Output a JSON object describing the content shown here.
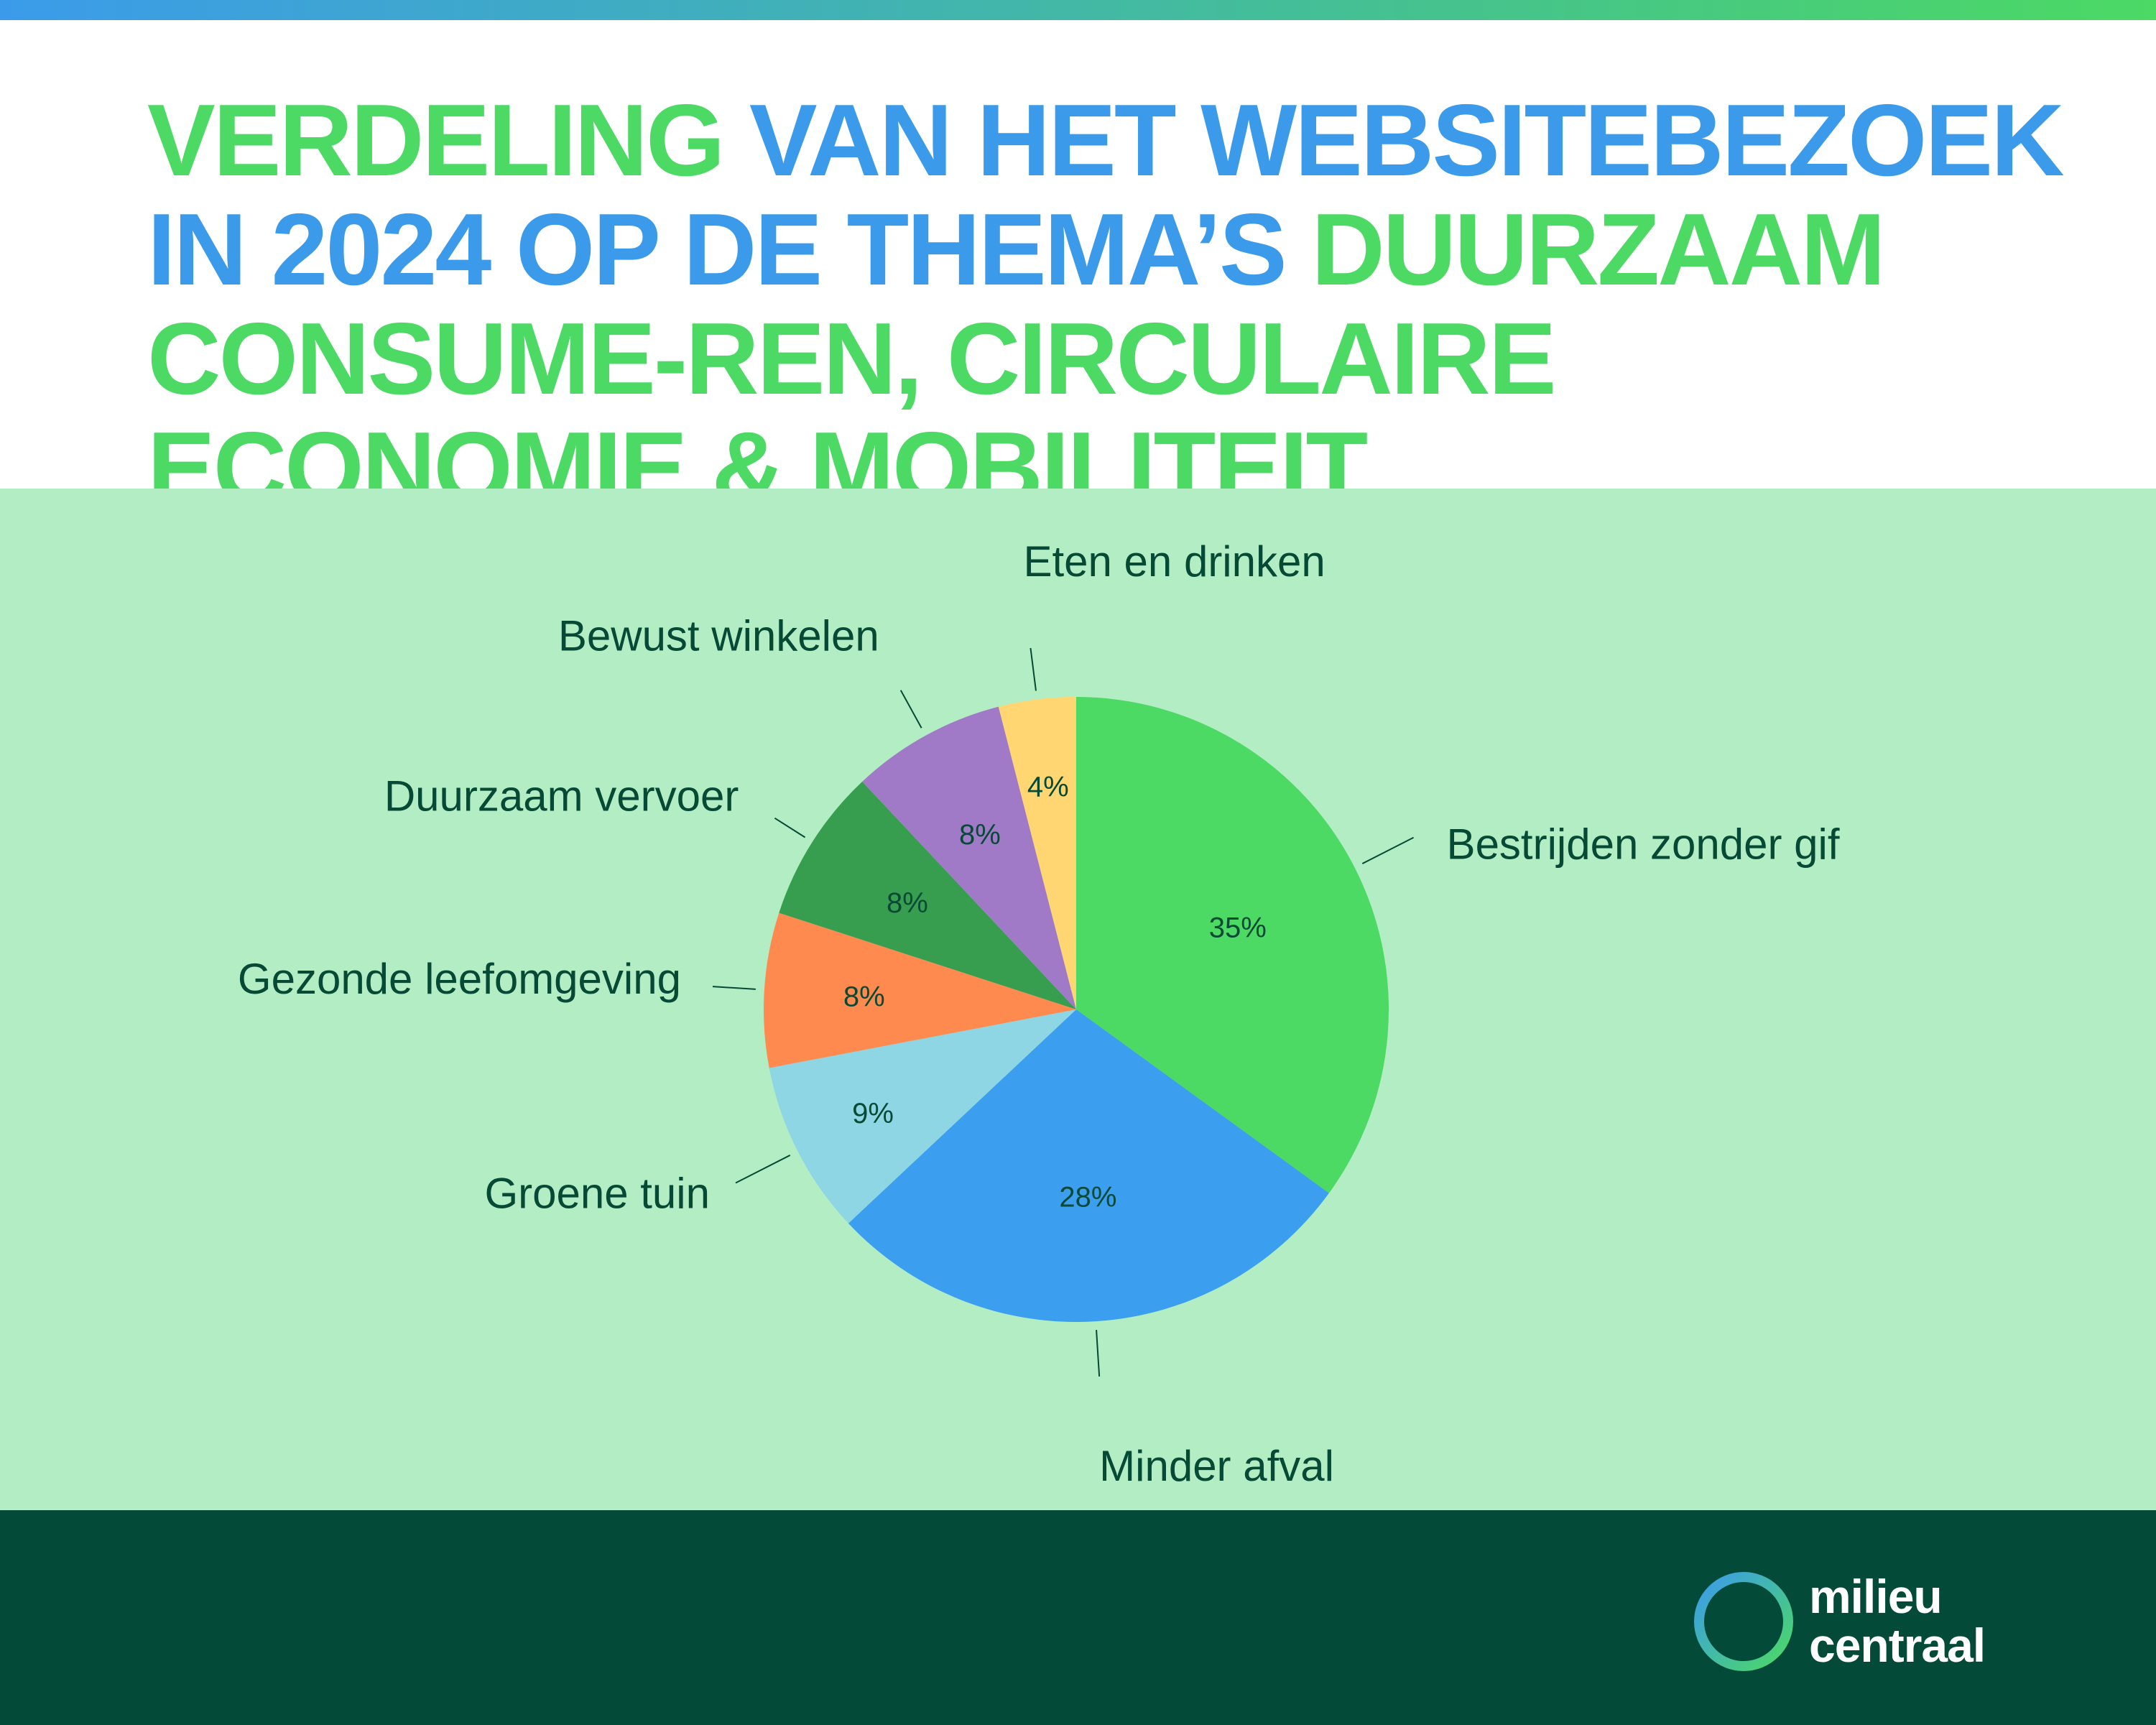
{
  "title": {
    "part1": "VERDELING ",
    "part2": "VAN HET WEBSITEBEZOEK IN 2024 OP DE THEMA’S ",
    "part3": "DUURZAAM CONSUME-REN, CIRCULAIRE ECONOMIE & MOBILITEIT"
  },
  "chart_data": {
    "type": "pie",
    "title": "VERDELING VAN HET WEBSITEBEZOEK IN 2024 OP DE THEMA’S DUURZAAM CONSUME-REN, CIRCULAIRE ECONOMIE & MOBILITEIT",
    "slices": [
      {
        "label": "Bestrijden zonder gif",
        "value": 35,
        "display": "35%",
        "color": "#4cd964"
      },
      {
        "label": "Minder afval",
        "value": 28,
        "display": "28%",
        "color": "#3b9eef"
      },
      {
        "label": "Groene tuin",
        "value": 9,
        "display": "9%",
        "color": "#8ed6e3"
      },
      {
        "label": "Gezonde leefomgeving",
        "value": 8,
        "display": "8%",
        "color": "#ff8a4f"
      },
      {
        "label": "Duurzaam vervoer",
        "value": 8,
        "display": "8%",
        "color": "#389e4f"
      },
      {
        "label": "Bewust winkelen",
        "value": 8,
        "display": "8%",
        "color": "#a07ac7"
      },
      {
        "label": "Eten en drinken",
        "value": 4,
        "display": "4%",
        "color": "#ffd671"
      }
    ]
  },
  "colors": {
    "title_green": "#4cd964",
    "title_blue": "#3b9bea",
    "chart_background": "#b3edc4",
    "footer_background": "#034b38",
    "label_text": "#064a35"
  },
  "logo": {
    "line1": "milieu",
    "line2": "centraal",
    "icon": "ring-logo-icon"
  }
}
